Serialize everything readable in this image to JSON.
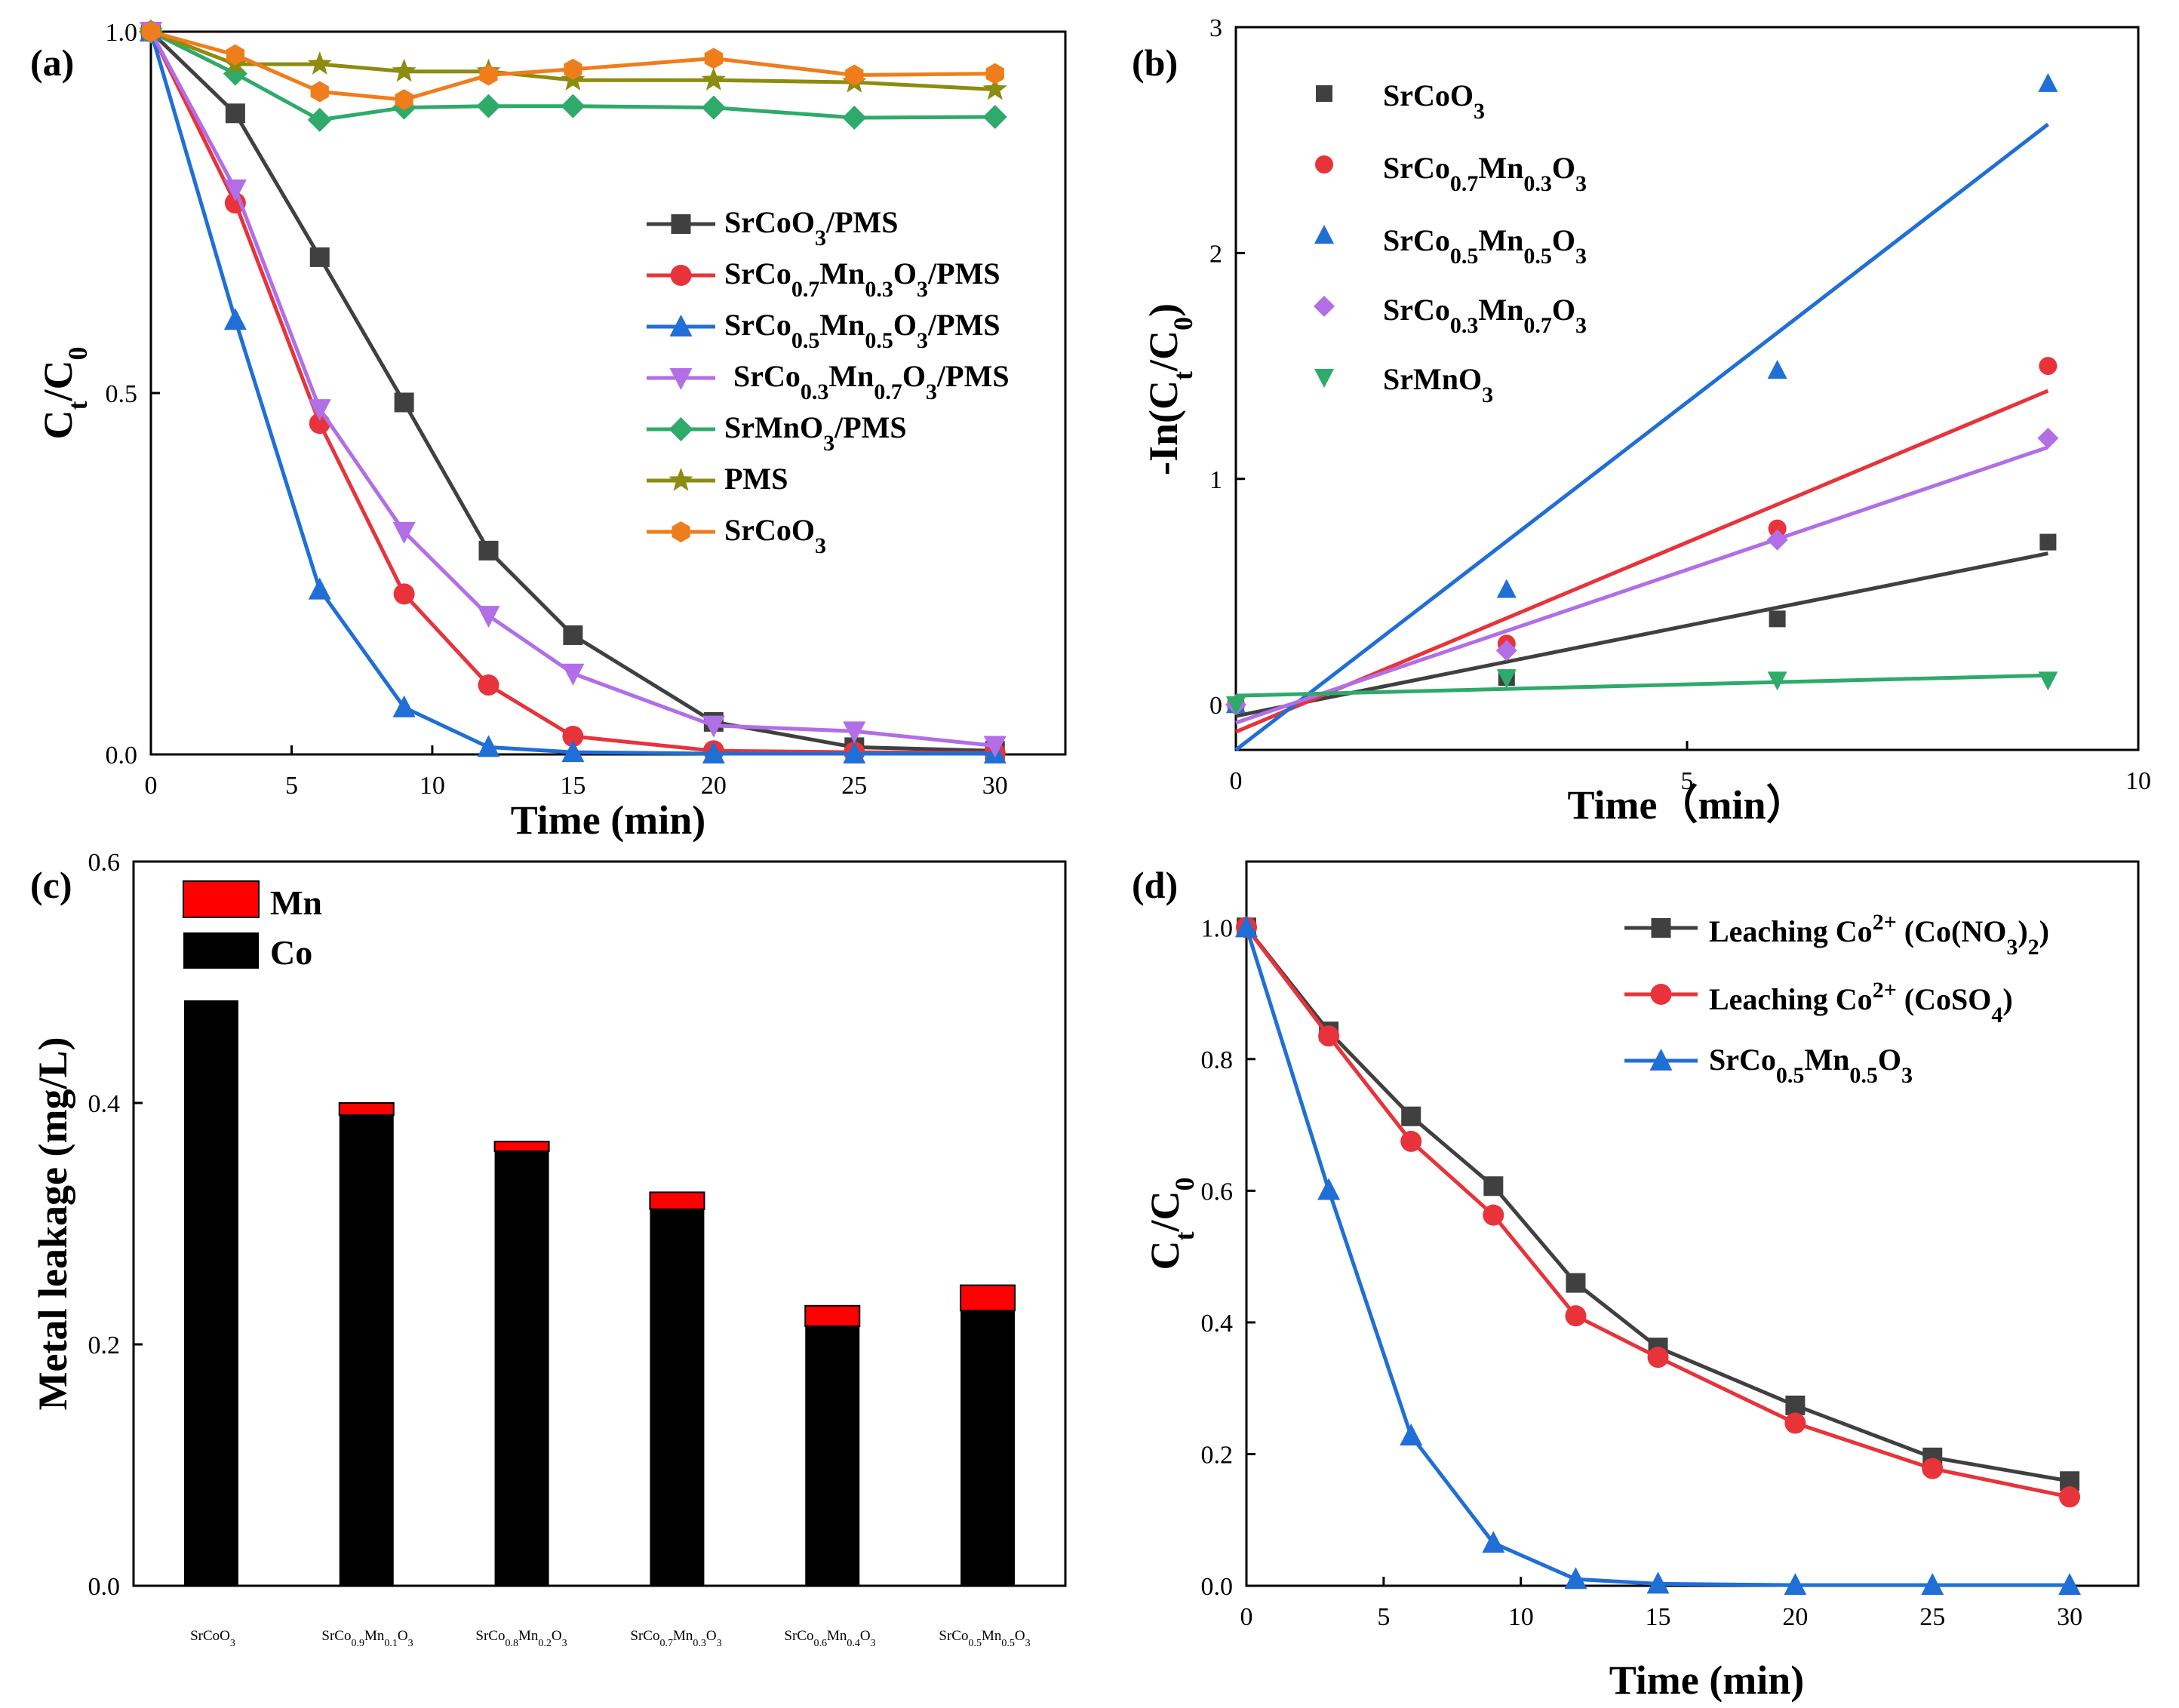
{
  "chart_data": [
    {
      "id": "a",
      "type": "line",
      "panel_label": "(a)",
      "xlabel": "Time (min)",
      "ylabel": "Ct/C0",
      "xlim": [
        0,
        32.5
      ],
      "ylim": [
        0,
        1.0
      ],
      "xticks": [
        0,
        5,
        10,
        15,
        20,
        25,
        30
      ],
      "yticks": [
        0.0,
        0.5,
        1.0
      ],
      "ytick_labels": [
        "0.0",
        "0.5",
        "1.0"
      ],
      "legend_position": "right-middle",
      "series": [
        {
          "name": "SrCoO3/PMS",
          "color": "#404040",
          "marker": "square",
          "x": [
            0,
            3,
            6,
            9,
            12,
            15,
            20,
            25,
            30
          ],
          "y": [
            1.0,
            0.887,
            0.688,
            0.487,
            0.282,
            0.165,
            0.045,
            0.01,
            0.005
          ]
        },
        {
          "name": "SrCo0.7Mn0.3O3/PMS",
          "color": "#e8333a",
          "marker": "circle",
          "x": [
            0,
            3,
            6,
            9,
            12,
            15,
            20,
            25,
            30
          ],
          "y": [
            1.0,
            0.763,
            0.458,
            0.222,
            0.096,
            0.025,
            0.005,
            0.003,
            0.002
          ]
        },
        {
          "name": "SrCo0.5Mn0.5O3/PMS",
          "color": "#1f6fd6",
          "marker": "triangle-up",
          "x": [
            0,
            3,
            6,
            9,
            12,
            15,
            20,
            25,
            30
          ],
          "y": [
            1.0,
            0.601,
            0.228,
            0.065,
            0.01,
            0.003,
            0.001,
            0.001,
            0.001
          ]
        },
        {
          "name": "SrCo0.3Mn0.7O3/PMS",
          "color": "#b26ee6",
          "marker": "triangle-down",
          "x": [
            0,
            3,
            6,
            9,
            12,
            15,
            20,
            25,
            30
          ],
          "y": [
            1.0,
            0.782,
            0.478,
            0.308,
            0.192,
            0.112,
            0.04,
            0.032,
            0.012
          ]
        },
        {
          "name": "SrMnO3/PMS",
          "color": "#2eaa6a",
          "marker": "diamond",
          "x": [
            0,
            3,
            6,
            9,
            12,
            15,
            20,
            25,
            30
          ],
          "y": [
            1.0,
            0.942,
            0.878,
            0.895,
            0.897,
            0.897,
            0.895,
            0.881,
            0.882
          ]
        },
        {
          "name": "PMS",
          "color": "#8c8c10",
          "marker": "star",
          "x": [
            0,
            3,
            6,
            9,
            12,
            15,
            20,
            25,
            30
          ],
          "y": [
            1.0,
            0.955,
            0.955,
            0.945,
            0.945,
            0.933,
            0.933,
            0.93,
            0.92
          ]
        },
        {
          "name": "SrCoO3",
          "color": "#f07d1c",
          "marker": "hexagon",
          "x": [
            0,
            3,
            6,
            9,
            12,
            15,
            20,
            25,
            30
          ],
          "y": [
            1.0,
            0.968,
            0.917,
            0.906,
            0.94,
            0.948,
            0.963,
            0.94,
            0.942
          ]
        }
      ]
    },
    {
      "id": "b",
      "type": "scatter",
      "panel_label": "(b)",
      "xlabel": "Time（min）",
      "ylabel": "-In(Ct/C0)",
      "xlim": [
        0,
        10
      ],
      "ylim": [
        -0.2,
        3.0
      ],
      "xticks": [
        0,
        5,
        10
      ],
      "yticks": [
        0,
        1,
        2,
        3
      ],
      "ytick_labels": [
        "0",
        "1",
        "2",
        "3"
      ],
      "legend_position": "top-left",
      "series": [
        {
          "name": "SrCoO3",
          "color": "#404040",
          "marker": "square",
          "x": [
            0,
            3,
            6,
            9
          ],
          "y": [
            0.0,
            0.12,
            0.38,
            0.72
          ],
          "fit": {
            "x": [
              0,
              9
            ],
            "y": [
              -0.05,
              0.67
            ]
          }
        },
        {
          "name": "SrCo0.7Mn0.3O3",
          "color": "#e8333a",
          "marker": "circle",
          "x": [
            0,
            3,
            6,
            9
          ],
          "y": [
            0.0,
            0.27,
            0.78,
            1.5
          ],
          "fit": {
            "x": [
              0,
              9
            ],
            "y": [
              -0.12,
              1.39
            ]
          }
        },
        {
          "name": "SrCo0.5Mn0.5O3",
          "color": "#1f6fd6",
          "marker": "triangle-up",
          "x": [
            0,
            3,
            6,
            9
          ],
          "y": [
            0.0,
            0.51,
            1.48,
            2.75
          ],
          "fit": {
            "x": [
              0,
              9
            ],
            "y": [
              -0.2,
              2.57
            ]
          }
        },
        {
          "name": "SrCo0.3Mn0.7O3",
          "color": "#b26ee6",
          "marker": "diamond",
          "x": [
            0,
            3,
            6,
            9
          ],
          "y": [
            0.0,
            0.24,
            0.73,
            1.18
          ],
          "fit": {
            "x": [
              0,
              9
            ],
            "y": [
              -0.08,
              1.14
            ]
          }
        },
        {
          "name": "SrMnO3",
          "color": "#2eaa6a",
          "marker": "triangle-down",
          "x": [
            0,
            3,
            6,
            9
          ],
          "y": [
            0.0,
            0.12,
            0.11,
            0.11
          ],
          "fit": {
            "x": [
              0,
              9
            ],
            "y": [
              0.04,
              0.13
            ]
          }
        }
      ]
    },
    {
      "id": "c",
      "type": "bar",
      "stacked": true,
      "panel_label": "(c)",
      "xlabel": "",
      "ylabel": "Metal leakage (mg/L)",
      "ylim": [
        0,
        0.6
      ],
      "yticks": [
        0.0,
        0.2,
        0.4,
        0.6
      ],
      "ytick_labels": [
        "0.0",
        "0.2",
        "0.4",
        "0.6"
      ],
      "legend_position": "top-left",
      "categories": [
        "SrCoO3",
        "SrCo0.9Mn0.1O3",
        "SrCo0.8Mn0.2O3",
        "SrCo0.7Mn0.3O3",
        "SrCo0.6Mn0.4O3",
        "SrCo0.5Mn0.5O3"
      ],
      "series": [
        {
          "name": "Co",
          "color": "#000000",
          "values": [
            0.485,
            0.39,
            0.36,
            0.312,
            0.215,
            0.228
          ]
        },
        {
          "name": "Mn",
          "color": "#ff0000",
          "values": [
            0.0,
            0.01,
            0.008,
            0.014,
            0.017,
            0.021
          ]
        }
      ]
    },
    {
      "id": "d",
      "type": "line",
      "panel_label": "(d)",
      "xlabel": "Time (min)",
      "ylabel": "Ct/C0",
      "xlim": [
        0,
        32.5
      ],
      "ylim": [
        0,
        1.1
      ],
      "xticks": [
        0,
        5,
        10,
        15,
        20,
        25,
        30
      ],
      "yticks": [
        0.0,
        0.2,
        0.4,
        0.6,
        0.8,
        1.0
      ],
      "ytick_labels": [
        "0.0",
        "0.2",
        "0.4",
        "0.6",
        "0.8",
        "1.0"
      ],
      "legend_position": "top-right",
      "series": [
        {
          "name": "Leaching Co2+ (Co(NO3)2)",
          "color": "#404040",
          "marker": "square",
          "x": [
            0,
            3,
            6,
            9,
            12,
            15,
            20,
            25,
            30
          ],
          "y": [
            1.0,
            0.842,
            0.713,
            0.607,
            0.46,
            0.362,
            0.274,
            0.195,
            0.159
          ]
        },
        {
          "name": "Leaching Co2+ (CoSO4)",
          "color": "#e8333a",
          "marker": "circle",
          "x": [
            0,
            3,
            6,
            9,
            12,
            15,
            20,
            25,
            30
          ],
          "y": [
            1.0,
            0.835,
            0.675,
            0.563,
            0.41,
            0.347,
            0.247,
            0.178,
            0.135
          ]
        },
        {
          "name": "SrCo0.5Mn0.5O3",
          "color": "#1f6fd6",
          "marker": "triangle-up",
          "x": [
            0,
            3,
            6,
            9,
            12,
            15,
            20,
            25,
            30
          ],
          "y": [
            1.0,
            0.601,
            0.228,
            0.065,
            0.01,
            0.003,
            0.001,
            0.001,
            0.001
          ]
        }
      ]
    }
  ]
}
